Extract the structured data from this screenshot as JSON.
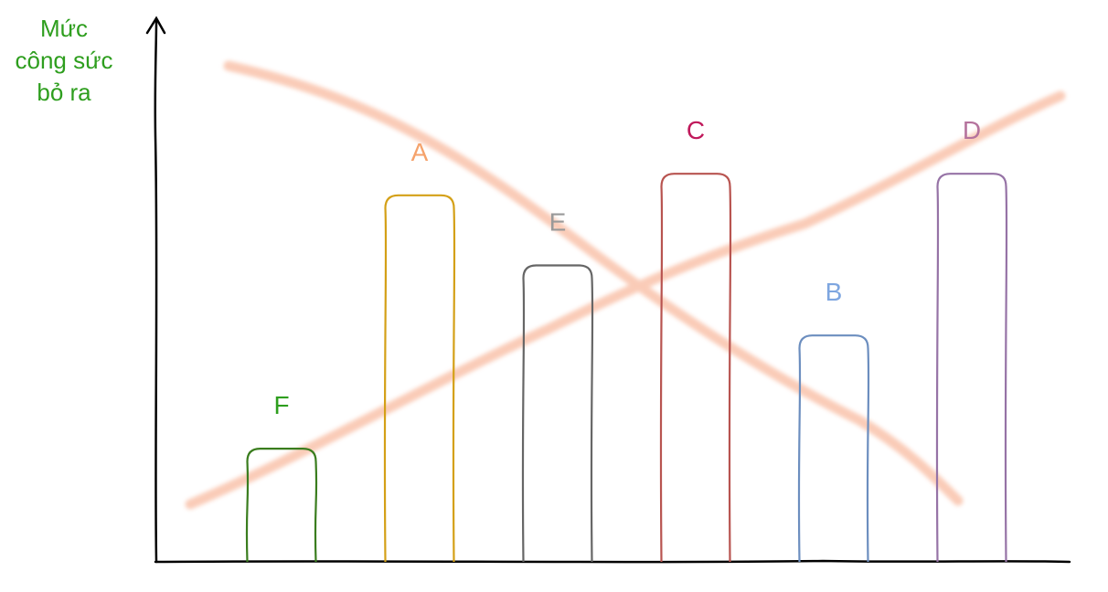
{
  "chart_data": {
    "type": "bar",
    "y_label": "Mức\ncông sức\nbỏ ra",
    "categories": [
      "F",
      "A",
      "E",
      "C",
      "B",
      "D"
    ],
    "values": [
      21,
      68,
      55,
      72,
      42,
      72
    ],
    "colors": [
      "#3a7d1e",
      "#d4a017",
      "#666666",
      "#b85450",
      "#6c8ebf",
      "#9673a6"
    ],
    "label_colors": [
      "#2e9e1e",
      "#f5a26b",
      "#999999",
      "#c0195b",
      "#7ea6e0",
      "#b5739d"
    ],
    "ylim": [
      0,
      100
    ]
  }
}
